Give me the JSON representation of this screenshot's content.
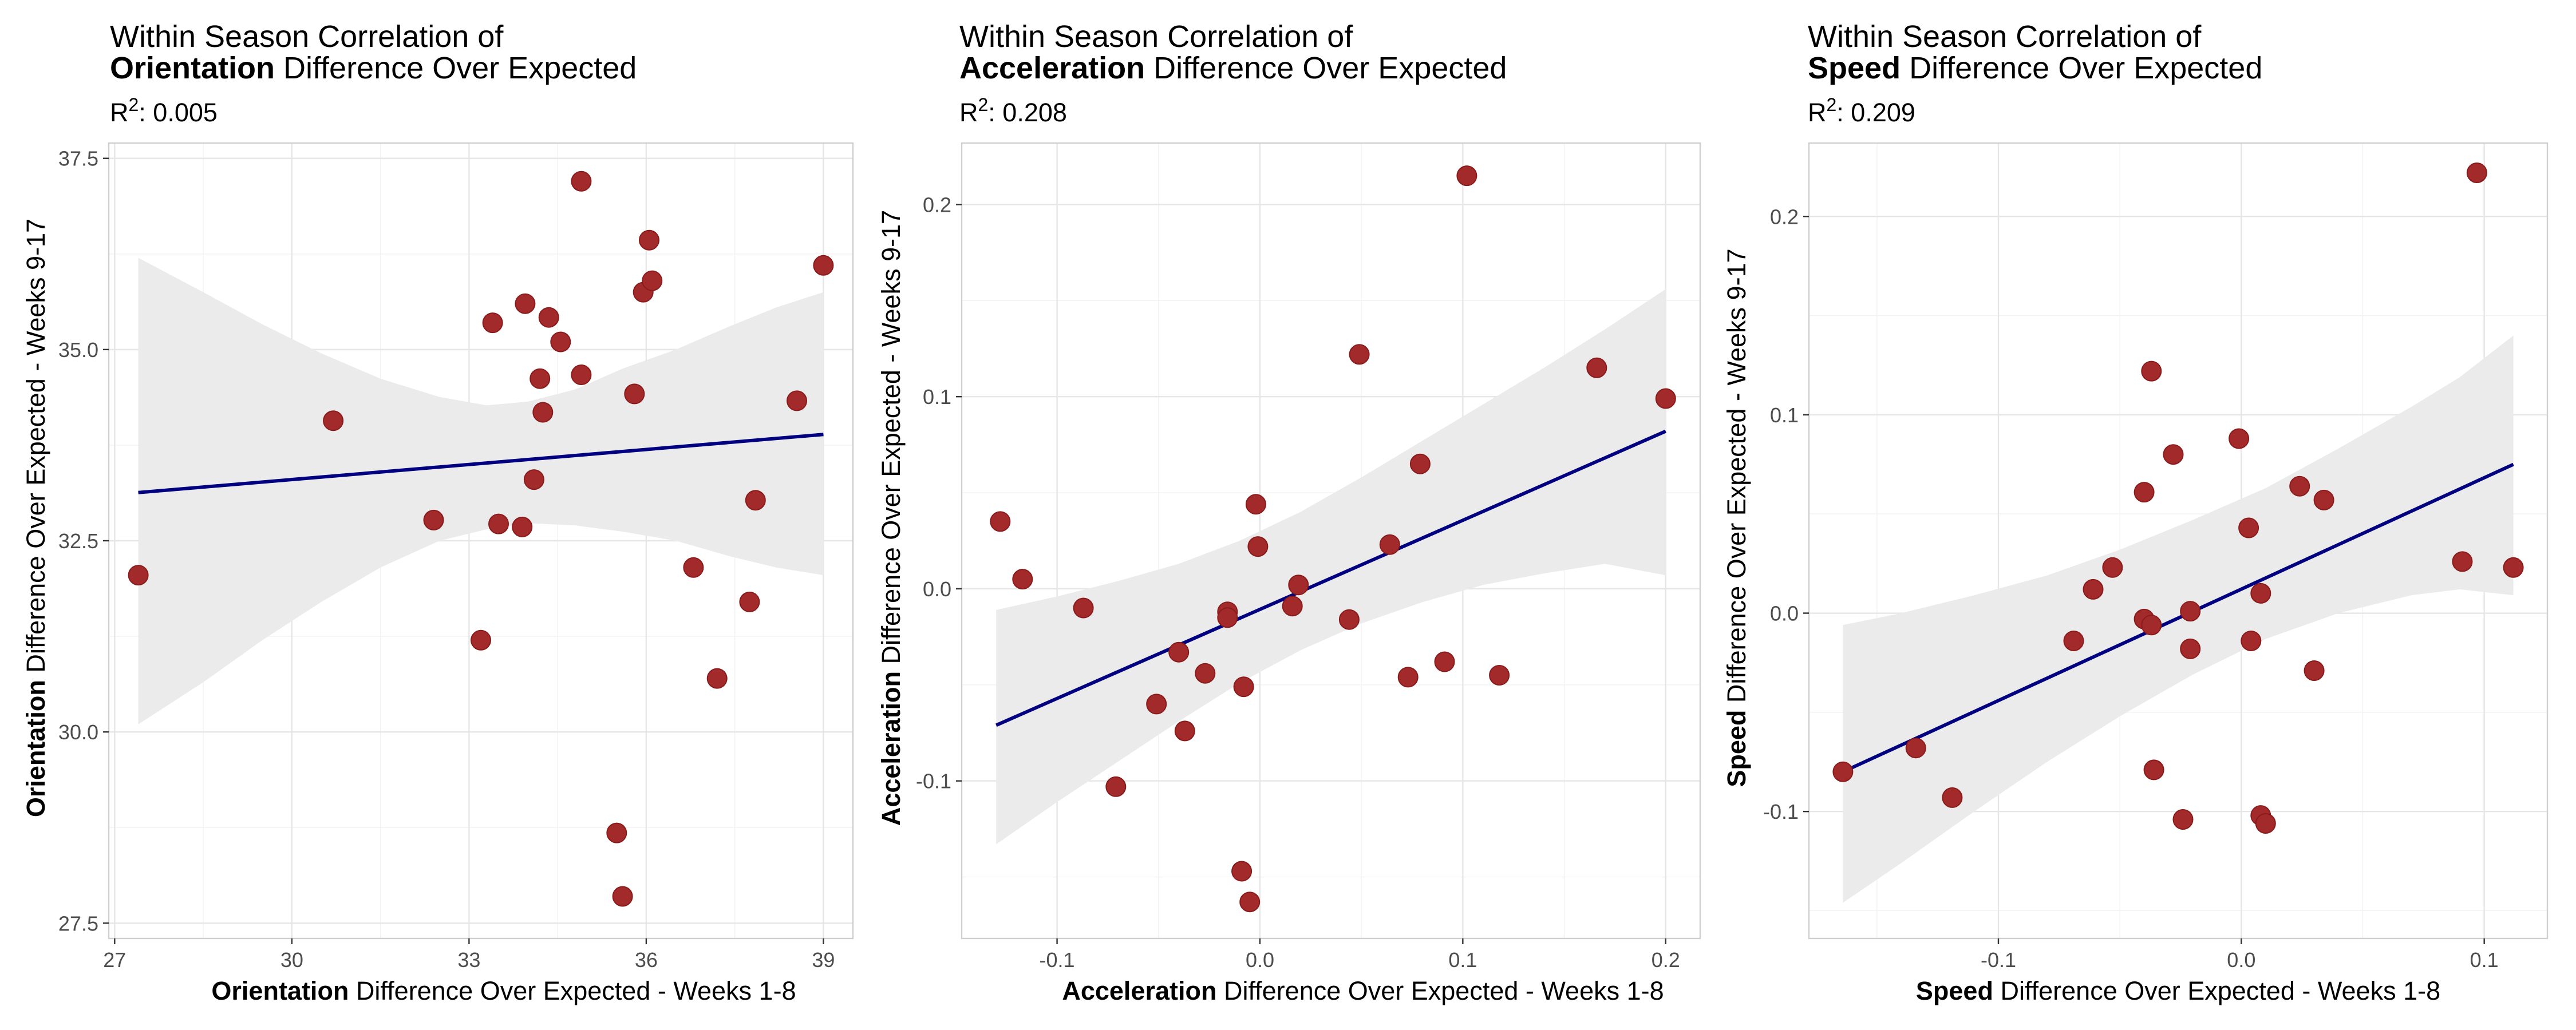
{
  "point_color": "#a32a2a",
  "line_color": "#000080",
  "band_color": "#ebebeb",
  "chart_data": [
    {
      "type": "scatter",
      "title_line1": "Within Season Correlation of",
      "title_bold": "Orientation",
      "title_rest": " Difference Over Expected",
      "r2_value": ": 0.005",
      "xlabel_bold": "Orientation",
      "xlabel_rest": " Difference Over Expected - Weeks 1-8",
      "ylabel_bold": "Orientation",
      "ylabel_rest": " Difference Over Expected - Weeks 9-17",
      "xlim": [
        26.9,
        39.5
      ],
      "ylim": [
        27.3,
        37.7
      ],
      "xticks": [
        27,
        30,
        33,
        36,
        39
      ],
      "xtick_labels": [
        "27",
        "30",
        "33",
        "36",
        "39"
      ],
      "yticks": [
        27.5,
        30.0,
        32.5,
        35.0,
        37.5
      ],
      "ytick_labels": [
        "27.5",
        "30.0",
        "32.5",
        "35.0",
        "37.5"
      ],
      "fit": {
        "x0": 27.4,
        "y0": 33.13,
        "x1": 39.0,
        "y1": 33.89
      },
      "band": {
        "x": [
          27.4,
          28.5,
          29.5,
          30.5,
          31.5,
          32.5,
          33.3,
          34.0,
          34.8,
          35.6,
          36.5,
          37.4,
          38.2,
          39.0
        ],
        "upper": [
          36.2,
          35.75,
          35.33,
          34.95,
          34.62,
          34.38,
          34.27,
          34.32,
          34.48,
          34.75,
          35.0,
          35.3,
          35.55,
          35.75
        ],
        "lower": [
          30.1,
          30.65,
          31.2,
          31.7,
          32.15,
          32.5,
          32.65,
          32.73,
          32.7,
          32.62,
          32.5,
          32.3,
          32.15,
          32.05
        ]
      },
      "points": [
        {
          "x": 27.4,
          "y": 32.05
        },
        {
          "x": 30.7,
          "y": 34.07
        },
        {
          "x": 32.4,
          "y": 32.77
        },
        {
          "x": 33.2,
          "y": 31.2
        },
        {
          "x": 33.4,
          "y": 35.35
        },
        {
          "x": 33.5,
          "y": 32.72
        },
        {
          "x": 33.9,
          "y": 32.68
        },
        {
          "x": 33.95,
          "y": 35.6
        },
        {
          "x": 34.1,
          "y": 33.3
        },
        {
          "x": 34.2,
          "y": 34.62
        },
        {
          "x": 34.25,
          "y": 34.18
        },
        {
          "x": 34.35,
          "y": 35.42
        },
        {
          "x": 34.55,
          "y": 35.1
        },
        {
          "x": 34.9,
          "y": 37.2
        },
        {
          "x": 34.9,
          "y": 34.67
        },
        {
          "x": 35.5,
          "y": 28.68
        },
        {
          "x": 35.6,
          "y": 27.85
        },
        {
          "x": 35.8,
          "y": 34.42
        },
        {
          "x": 35.95,
          "y": 35.75
        },
        {
          "x": 36.05,
          "y": 36.43
        },
        {
          "x": 36.1,
          "y": 35.9
        },
        {
          "x": 36.8,
          "y": 32.15
        },
        {
          "x": 37.2,
          "y": 30.7
        },
        {
          "x": 37.75,
          "y": 31.7
        },
        {
          "x": 37.85,
          "y": 33.03
        },
        {
          "x": 38.55,
          "y": 34.33
        },
        {
          "x": 39.0,
          "y": 36.1
        }
      ]
    },
    {
      "type": "scatter",
      "title_line1": "Within Season Correlation of",
      "title_bold": "Acceleration",
      "title_rest": " Difference Over Expected",
      "r2_value": ": 0.208",
      "xlabel_bold": "Acceleration",
      "xlabel_rest": " Difference Over Expected - Weeks 1-8",
      "ylabel_bold": "Acceleration",
      "ylabel_rest": " Difference Over Expected - Weeks 9-17",
      "xlim": [
        -0.147,
        0.217
      ],
      "ylim": [
        -0.182,
        0.232
      ],
      "xticks": [
        -0.1,
        0.0,
        0.1,
        0.2
      ],
      "xtick_labels": [
        "-0.1",
        "0.0",
        "0.1",
        "0.2"
      ],
      "yticks": [
        -0.1,
        0.0,
        0.1,
        0.2
      ],
      "ytick_labels": [
        "-0.1",
        "0.0",
        "0.1",
        "0.2"
      ],
      "fit": {
        "x0": -0.13,
        "y0": -0.071,
        "x1": 0.2,
        "y1": 0.082
      },
      "band": {
        "x": [
          -0.13,
          -0.1,
          -0.07,
          -0.04,
          -0.01,
          0.02,
          0.05,
          0.08,
          0.11,
          0.14,
          0.17,
          0.2
        ],
        "upper": [
          -0.011,
          -0.004,
          0.004,
          0.013,
          0.025,
          0.04,
          0.058,
          0.077,
          0.096,
          0.115,
          0.135,
          0.156
        ],
        "lower": [
          -0.133,
          -0.111,
          -0.09,
          -0.069,
          -0.049,
          -0.032,
          -0.018,
          -0.007,
          0.002,
          0.008,
          0.013,
          0.007
        ]
      },
      "points": [
        {
          "x": -0.128,
          "y": 0.035
        },
        {
          "x": -0.117,
          "y": 0.005
        },
        {
          "x": -0.087,
          "y": -0.01
        },
        {
          "x": -0.071,
          "y": -0.103
        },
        {
          "x": -0.051,
          "y": -0.06
        },
        {
          "x": -0.04,
          "y": -0.033
        },
        {
          "x": -0.037,
          "y": -0.074
        },
        {
          "x": -0.027,
          "y": -0.044
        },
        {
          "x": -0.016,
          "y": -0.012
        },
        {
          "x": -0.016,
          "y": -0.015
        },
        {
          "x": -0.009,
          "y": -0.147
        },
        {
          "x": -0.008,
          "y": -0.051
        },
        {
          "x": -0.005,
          "y": -0.163
        },
        {
          "x": -0.002,
          "y": 0.044
        },
        {
          "x": -0.001,
          "y": 0.022
        },
        {
          "x": 0.016,
          "y": -0.009
        },
        {
          "x": 0.019,
          "y": 0.002
        },
        {
          "x": 0.044,
          "y": -0.016
        },
        {
          "x": 0.049,
          "y": 0.122
        },
        {
          "x": 0.064,
          "y": 0.023
        },
        {
          "x": 0.073,
          "y": -0.046
        },
        {
          "x": 0.079,
          "y": 0.065
        },
        {
          "x": 0.091,
          "y": -0.038
        },
        {
          "x": 0.102,
          "y": 0.215
        },
        {
          "x": 0.118,
          "y": -0.045
        },
        {
          "x": 0.166,
          "y": 0.115
        },
        {
          "x": 0.2,
          "y": 0.099
        }
      ]
    },
    {
      "type": "scatter",
      "title_line1": "Within Season Correlation of",
      "title_bold": "Speed",
      "title_rest": " Difference Over Expected",
      "r2_value": ": 0.209",
      "xlabel_bold": "Speed",
      "xlabel_rest": " Difference Over Expected - Weeks 1-8",
      "ylabel_bold": "Speed",
      "ylabel_rest": " Difference Over Expected - Weeks 9-17",
      "xlim": [
        -0.178,
        0.126
      ],
      "ylim": [
        -0.164,
        0.237
      ],
      "xticks": [
        -0.1,
        0.0,
        0.1
      ],
      "xtick_labels": [
        "-0.1",
        "0.0",
        "0.1"
      ],
      "yticks": [
        -0.1,
        0.0,
        0.1,
        0.2
      ],
      "ytick_labels": [
        "-0.1",
        "0.0",
        "0.1",
        "0.2"
      ],
      "fit": {
        "x0": -0.164,
        "y0": -0.08,
        "x1": 0.112,
        "y1": 0.075
      },
      "band": {
        "x": [
          -0.164,
          -0.14,
          -0.11,
          -0.08,
          -0.05,
          -0.02,
          0.01,
          0.04,
          0.07,
          0.09,
          0.112
        ],
        "upper": [
          -0.006,
          0.0,
          0.009,
          0.019,
          0.032,
          0.047,
          0.063,
          0.083,
          0.104,
          0.119,
          0.14
        ],
        "lower": [
          -0.146,
          -0.126,
          -0.1,
          -0.075,
          -0.052,
          -0.031,
          -0.013,
          0.0,
          0.009,
          0.012,
          0.009
        ]
      },
      "points": [
        {
          "x": -0.164,
          "y": -0.08
        },
        {
          "x": -0.134,
          "y": -0.068
        },
        {
          "x": -0.119,
          "y": -0.093
        },
        {
          "x": -0.069,
          "y": -0.014
        },
        {
          "x": -0.061,
          "y": 0.012
        },
        {
          "x": -0.053,
          "y": 0.023
        },
        {
          "x": -0.04,
          "y": 0.061
        },
        {
          "x": -0.04,
          "y": -0.003
        },
        {
          "x": -0.037,
          "y": 0.122
        },
        {
          "x": -0.037,
          "y": -0.006
        },
        {
          "x": -0.036,
          "y": -0.079
        },
        {
          "x": -0.028,
          "y": 0.08
        },
        {
          "x": -0.024,
          "y": -0.104
        },
        {
          "x": -0.021,
          "y": 0.001
        },
        {
          "x": -0.021,
          "y": -0.018
        },
        {
          "x": -0.001,
          "y": 0.088
        },
        {
          "x": 0.003,
          "y": 0.043
        },
        {
          "x": 0.004,
          "y": -0.014
        },
        {
          "x": 0.008,
          "y": 0.01
        },
        {
          "x": 0.008,
          "y": -0.102
        },
        {
          "x": 0.01,
          "y": -0.106
        },
        {
          "x": 0.024,
          "y": 0.064
        },
        {
          "x": 0.03,
          "y": -0.029
        },
        {
          "x": 0.034,
          "y": 0.057
        },
        {
          "x": 0.091,
          "y": 0.026
        },
        {
          "x": 0.097,
          "y": 0.222
        },
        {
          "x": 0.112,
          "y": 0.023
        }
      ]
    }
  ]
}
